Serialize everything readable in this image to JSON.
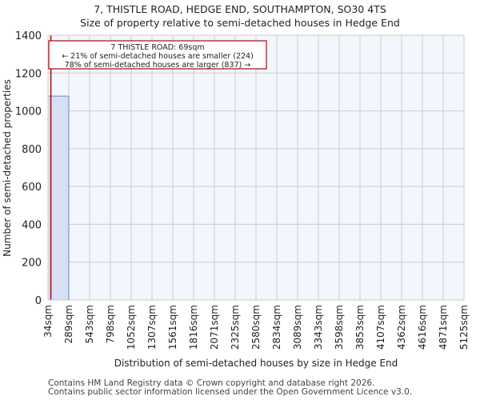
{
  "header": {
    "title": "7, THISTLE ROAD, HEDGE END, SOUTHAMPTON, SO30 4TS",
    "subtitle": "Size of property relative to semi-detached houses in Hedge End"
  },
  "annotation": {
    "line1": "7 THISTLE ROAD: 69sqm",
    "line2": "← 21% of semi-detached houses are smaller (224)",
    "line3": "78% of semi-detached houses are larger (837) →"
  },
  "footer": {
    "line1": "Contains HM Land Registry data © Crown copyright and database right 2026.",
    "line2": "Contains public sector information licensed under the Open Government Licence v3.0."
  },
  "colors": {
    "bar_fill": "#d6e0f2",
    "bar_edge": "#5b8bd0",
    "plot_bg": "#f3f6fd",
    "grid": "#cccccc",
    "marker": "#c00000"
  },
  "chart_data": {
    "type": "bar",
    "title": "7, THISTLE ROAD, HEDGE END, SOUTHAMPTON, SO30 4TS",
    "subtitle": "Size of property relative to semi-detached houses in Hedge End",
    "xlabel": "Distribution of semi-detached houses by size in Hedge End",
    "ylabel": "Number of semi-detached properties",
    "categories": [
      "34sqm",
      "289sqm",
      "543sqm",
      "798sqm",
      "1052sqm",
      "1307sqm",
      "1561sqm",
      "1816sqm",
      "2071sqm",
      "2325sqm",
      "2580sqm",
      "2834sqm",
      "3089sqm",
      "3343sqm",
      "3598sqm",
      "3853sqm",
      "4107sqm",
      "4362sqm",
      "4616sqm",
      "4871sqm",
      "5125sqm"
    ],
    "values": [
      1078,
      0,
      0,
      0,
      0,
      0,
      0,
      0,
      0,
      0,
      0,
      0,
      0,
      0,
      0,
      0,
      0,
      0,
      0,
      0
    ],
    "yticks": [
      0,
      200,
      400,
      600,
      800,
      1000,
      1200,
      1400
    ],
    "ylim": [
      0,
      1400
    ],
    "grid": true,
    "marker": {
      "label": "7 THISTLE ROAD",
      "value_sqm": 69
    },
    "legend": null
  }
}
